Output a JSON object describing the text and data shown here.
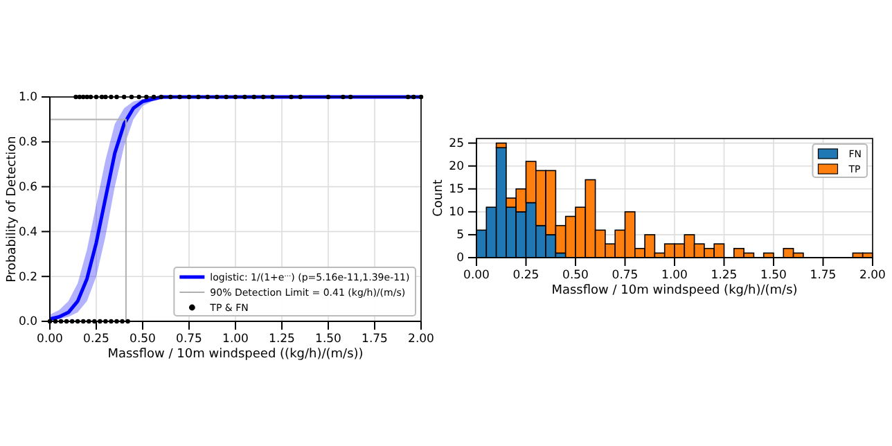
{
  "chart_data": [
    {
      "type": "line",
      "xlabel": "Massflow / 10m windspeed ((kg/h)/(m/s))",
      "ylabel": "Probability of Detection",
      "xlim": [
        0,
        2
      ],
      "ylim": [
        0,
        1
      ],
      "xticks": [
        {
          "value": 0,
          "label": "0.00"
        },
        {
          "value": 0.25,
          "label": "0.25"
        },
        {
          "value": 0.5,
          "label": "0.50"
        },
        {
          "value": 0.75,
          "label": "0.75"
        },
        {
          "value": 1,
          "label": "1.00"
        },
        {
          "value": 1.25,
          "label": "1.25"
        },
        {
          "value": 1.5,
          "label": "1.50"
        },
        {
          "value": 1.75,
          "label": "1.75"
        },
        {
          "value": 2,
          "label": "2.00"
        }
      ],
      "yticks": [
        {
          "value": 0,
          "label": "0.0"
        },
        {
          "value": 0.2,
          "label": "0.2"
        },
        {
          "value": 0.4,
          "label": "0.4"
        },
        {
          "value": 0.6,
          "label": "0.6"
        },
        {
          "value": 0.8,
          "label": "0.8"
        },
        {
          "value": 1,
          "label": "1.0"
        }
      ],
      "grid": true,
      "legend": "bottom right",
      "series": [
        {
          "name": "logistic: 1/(1+e$^{…}$) (p=5.16e-11,1.39e-11)",
          "type": "line",
          "color": "#0000ff",
          "x": [
            0,
            0.05,
            0.1,
            0.15,
            0.2,
            0.25,
            0.3,
            0.35,
            0.4,
            0.45,
            0.5,
            0.55,
            0.6,
            0.8,
            1,
            1.5,
            2
          ],
          "values": [
            0.01,
            0.02,
            0.04,
            0.09,
            0.19,
            0.35,
            0.55,
            0.75,
            0.88,
            0.95,
            0.98,
            0.99,
            1,
            1,
            1,
            1,
            1
          ],
          "lower": [
            0,
            0.01,
            0.02,
            0.04,
            0.09,
            0.2,
            0.38,
            0.6,
            0.78,
            0.9,
            0.96,
            0.98,
            0.99,
            1,
            1,
            1,
            1
          ],
          "upper": [
            0.03,
            0.05,
            0.09,
            0.17,
            0.32,
            0.52,
            0.72,
            0.88,
            0.95,
            0.98,
            0.99,
            1,
            1,
            1,
            1,
            1,
            1
          ]
        },
        {
          "name": "90% Detection Limit = 0.41 (kg/h)/(m/s)",
          "type": "line",
          "color": "#b0b0b0",
          "x": [
            0,
            0.41,
            0.41
          ],
          "values": [
            0.9,
            0.9,
            0
          ]
        },
        {
          "name": "TP & FN",
          "type": "scatter",
          "color": "#000000",
          "x": [
            0.14,
            0.16,
            0.18,
            0.2,
            0.22,
            0.25,
            0.28,
            0.3,
            0.33,
            0.36,
            0.4,
            0.44,
            0.48,
            0.52,
            0.56,
            0.6,
            0.65,
            0.7,
            0.75,
            0.8,
            0.85,
            0.9,
            0.95,
            1.0,
            1.05,
            1.1,
            1.15,
            1.2,
            1.3,
            1.35,
            1.5,
            1.58,
            1.62,
            1.93,
            1.96,
            2.0,
            0,
            0.03,
            0.06,
            0.09,
            0.12,
            0.15,
            0.18,
            0.21,
            0.24,
            0.27,
            0.3,
            0.33,
            0.36,
            0.39,
            0.42
          ],
          "values": [
            1,
            1,
            1,
            1,
            1,
            1,
            1,
            1,
            1,
            1,
            1,
            1,
            1,
            1,
            1,
            1,
            1,
            1,
            1,
            1,
            1,
            1,
            1,
            1,
            1,
            1,
            1,
            1,
            1,
            1,
            1,
            1,
            1,
            1,
            1,
            1,
            0,
            0,
            0,
            0,
            0,
            0,
            0,
            0,
            0,
            0,
            0,
            0,
            0,
            0,
            0
          ]
        }
      ]
    },
    {
      "type": "bar",
      "stacked": true,
      "xlabel": "Massflow / 10m windspeed (kg/h)/(m/s)",
      "ylabel": "Count",
      "xlim": [
        0,
        2
      ],
      "ylim": [
        0,
        26
      ],
      "xticks": [
        {
          "value": 0,
          "label": "0.00"
        },
        {
          "value": 0.25,
          "label": "0.25"
        },
        {
          "value": 0.5,
          "label": "0.50"
        },
        {
          "value": 0.75,
          "label": "0.75"
        },
        {
          "value": 1,
          "label": "1.00"
        },
        {
          "value": 1.25,
          "label": "1.25"
        },
        {
          "value": 1.5,
          "label": "1.50"
        },
        {
          "value": 1.75,
          "label": "1.75"
        },
        {
          "value": 2,
          "label": "2.00"
        }
      ],
      "yticks": [
        0,
        5,
        10,
        15,
        20,
        25
      ],
      "grid": true,
      "legend": "top right",
      "x": [
        0.025,
        0.075,
        0.125,
        0.175,
        0.225,
        0.275,
        0.325,
        0.375,
        0.425,
        0.475,
        0.525,
        0.575,
        0.625,
        0.675,
        0.725,
        0.775,
        0.825,
        0.875,
        0.925,
        0.975,
        1.025,
        1.075,
        1.125,
        1.175,
        1.225,
        1.325,
        1.375,
        1.475,
        1.575,
        1.625,
        1.925,
        1.975
      ],
      "series": [
        {
          "name": "FN",
          "color": "#1f77b4",
          "values": [
            6,
            11,
            24,
            11,
            10,
            12,
            7,
            5,
            1,
            0,
            0,
            0,
            0,
            0,
            0,
            0,
            0,
            0,
            0,
            0,
            0,
            0,
            0,
            0,
            0,
            0,
            0,
            0,
            0,
            0,
            0,
            0
          ]
        },
        {
          "name": "TP",
          "color": "#ff7f0e",
          "values": [
            0,
            0,
            1,
            2,
            5,
            9,
            12,
            14,
            6,
            9,
            11,
            17,
            6,
            3,
            6,
            10,
            2,
            5,
            1,
            3,
            3,
            5,
            3,
            2,
            3,
            2,
            1,
            1,
            2,
            1,
            1,
            1
          ]
        }
      ]
    }
  ]
}
